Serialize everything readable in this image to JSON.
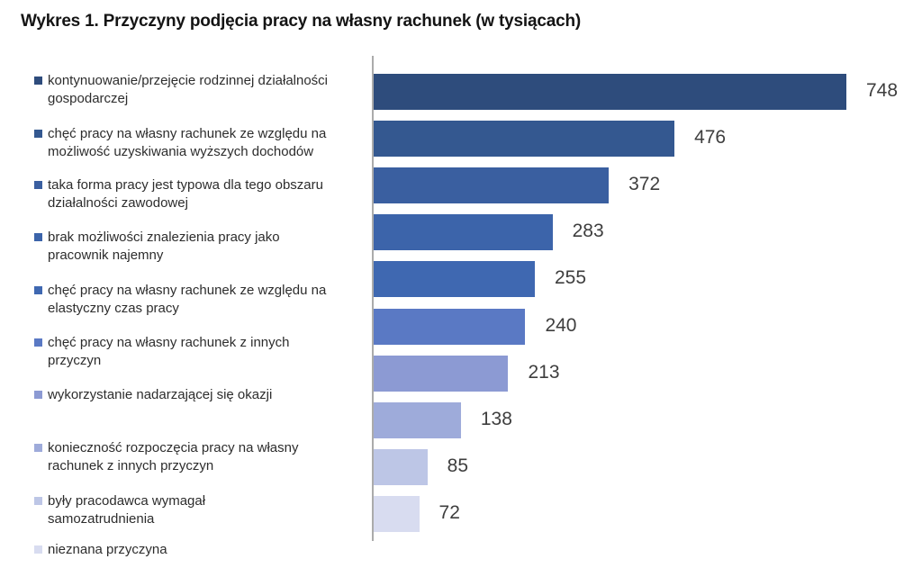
{
  "chart_data": {
    "type": "bar",
    "orientation": "horizontal",
    "title": "Wykres 1. Przyczyny podjęcia pracy na własny rachunek (w tysiącach)",
    "unit_note": "w tysiącach",
    "categories": [
      "kontynuowanie/przejęcie rodzinnej działalności gospodarczej",
      "chęć pracy na własny rachunek ze względu na możliwość uzyskiwania wyższych dochodów",
      "taka forma pracy jest typowa dla tego obszaru działalności zawodowej",
      "brak możliwości znalezienia pracy jako pracownik najemny",
      "chęć pracy na własny rachunek ze względu na elastyczny czas pracy",
      "chęć pracy na własny rachunek z innych przyczyn",
      "wykorzystanie nadarzającej się okazji",
      "konieczność rozpoczęcia pracy na własny rachunek z innych przyczyn",
      "były pracodawca wymagał samozatrudnienia",
      "nieznana przyczyna"
    ],
    "values": [
      748,
      476,
      372,
      283,
      255,
      240,
      213,
      138,
      85,
      72
    ],
    "colors": [
      "#2e4c7c",
      "#345890",
      "#3a5fa0",
      "#3c64aa",
      "#3f68b1",
      "#5a79c4",
      "#8c9ad3",
      "#9eabda",
      "#bdc6e6",
      "#d8dcf0"
    ],
    "axis_color": "#ababab",
    "value_labels": true,
    "legend_position": "left",
    "grid": false,
    "xlim": [
      0,
      790
    ]
  }
}
